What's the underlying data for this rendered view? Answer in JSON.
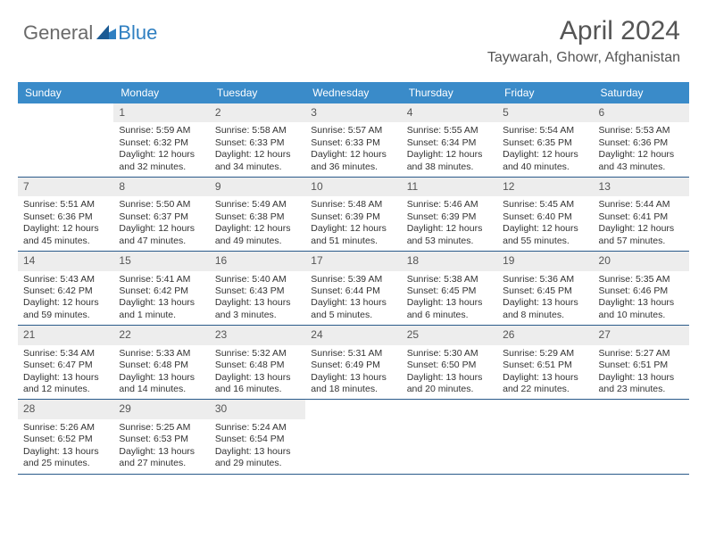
{
  "logo": {
    "general": "General",
    "blue": "Blue"
  },
  "title": "April 2024",
  "location": "Taywarah, Ghowr, Afghanistan",
  "colors": {
    "header_bg": "#3a8bc9",
    "header_text": "#ffffff",
    "daynum_bg": "#ededed",
    "divider": "#2a5a8a",
    "logo_general": "#6a6a6a",
    "logo_blue": "#2f7fc1"
  },
  "weekdays": [
    "Sunday",
    "Monday",
    "Tuesday",
    "Wednesday",
    "Thursday",
    "Friday",
    "Saturday"
  ],
  "weeks": [
    [
      {
        "n": "",
        "sunrise": "",
        "sunset": "",
        "day1": "",
        "day2": ""
      },
      {
        "n": "1",
        "sunrise": "Sunrise: 5:59 AM",
        "sunset": "Sunset: 6:32 PM",
        "day1": "Daylight: 12 hours",
        "day2": "and 32 minutes."
      },
      {
        "n": "2",
        "sunrise": "Sunrise: 5:58 AM",
        "sunset": "Sunset: 6:33 PM",
        "day1": "Daylight: 12 hours",
        "day2": "and 34 minutes."
      },
      {
        "n": "3",
        "sunrise": "Sunrise: 5:57 AM",
        "sunset": "Sunset: 6:33 PM",
        "day1": "Daylight: 12 hours",
        "day2": "and 36 minutes."
      },
      {
        "n": "4",
        "sunrise": "Sunrise: 5:55 AM",
        "sunset": "Sunset: 6:34 PM",
        "day1": "Daylight: 12 hours",
        "day2": "and 38 minutes."
      },
      {
        "n": "5",
        "sunrise": "Sunrise: 5:54 AM",
        "sunset": "Sunset: 6:35 PM",
        "day1": "Daylight: 12 hours",
        "day2": "and 40 minutes."
      },
      {
        "n": "6",
        "sunrise": "Sunrise: 5:53 AM",
        "sunset": "Sunset: 6:36 PM",
        "day1": "Daylight: 12 hours",
        "day2": "and 43 minutes."
      }
    ],
    [
      {
        "n": "7",
        "sunrise": "Sunrise: 5:51 AM",
        "sunset": "Sunset: 6:36 PM",
        "day1": "Daylight: 12 hours",
        "day2": "and 45 minutes."
      },
      {
        "n": "8",
        "sunrise": "Sunrise: 5:50 AM",
        "sunset": "Sunset: 6:37 PM",
        "day1": "Daylight: 12 hours",
        "day2": "and 47 minutes."
      },
      {
        "n": "9",
        "sunrise": "Sunrise: 5:49 AM",
        "sunset": "Sunset: 6:38 PM",
        "day1": "Daylight: 12 hours",
        "day2": "and 49 minutes."
      },
      {
        "n": "10",
        "sunrise": "Sunrise: 5:48 AM",
        "sunset": "Sunset: 6:39 PM",
        "day1": "Daylight: 12 hours",
        "day2": "and 51 minutes."
      },
      {
        "n": "11",
        "sunrise": "Sunrise: 5:46 AM",
        "sunset": "Sunset: 6:39 PM",
        "day1": "Daylight: 12 hours",
        "day2": "and 53 minutes."
      },
      {
        "n": "12",
        "sunrise": "Sunrise: 5:45 AM",
        "sunset": "Sunset: 6:40 PM",
        "day1": "Daylight: 12 hours",
        "day2": "and 55 minutes."
      },
      {
        "n": "13",
        "sunrise": "Sunrise: 5:44 AM",
        "sunset": "Sunset: 6:41 PM",
        "day1": "Daylight: 12 hours",
        "day2": "and 57 minutes."
      }
    ],
    [
      {
        "n": "14",
        "sunrise": "Sunrise: 5:43 AM",
        "sunset": "Sunset: 6:42 PM",
        "day1": "Daylight: 12 hours",
        "day2": "and 59 minutes."
      },
      {
        "n": "15",
        "sunrise": "Sunrise: 5:41 AM",
        "sunset": "Sunset: 6:42 PM",
        "day1": "Daylight: 13 hours",
        "day2": "and 1 minute."
      },
      {
        "n": "16",
        "sunrise": "Sunrise: 5:40 AM",
        "sunset": "Sunset: 6:43 PM",
        "day1": "Daylight: 13 hours",
        "day2": "and 3 minutes."
      },
      {
        "n": "17",
        "sunrise": "Sunrise: 5:39 AM",
        "sunset": "Sunset: 6:44 PM",
        "day1": "Daylight: 13 hours",
        "day2": "and 5 minutes."
      },
      {
        "n": "18",
        "sunrise": "Sunrise: 5:38 AM",
        "sunset": "Sunset: 6:45 PM",
        "day1": "Daylight: 13 hours",
        "day2": "and 6 minutes."
      },
      {
        "n": "19",
        "sunrise": "Sunrise: 5:36 AM",
        "sunset": "Sunset: 6:45 PM",
        "day1": "Daylight: 13 hours",
        "day2": "and 8 minutes."
      },
      {
        "n": "20",
        "sunrise": "Sunrise: 5:35 AM",
        "sunset": "Sunset: 6:46 PM",
        "day1": "Daylight: 13 hours",
        "day2": "and 10 minutes."
      }
    ],
    [
      {
        "n": "21",
        "sunrise": "Sunrise: 5:34 AM",
        "sunset": "Sunset: 6:47 PM",
        "day1": "Daylight: 13 hours",
        "day2": "and 12 minutes."
      },
      {
        "n": "22",
        "sunrise": "Sunrise: 5:33 AM",
        "sunset": "Sunset: 6:48 PM",
        "day1": "Daylight: 13 hours",
        "day2": "and 14 minutes."
      },
      {
        "n": "23",
        "sunrise": "Sunrise: 5:32 AM",
        "sunset": "Sunset: 6:48 PM",
        "day1": "Daylight: 13 hours",
        "day2": "and 16 minutes."
      },
      {
        "n": "24",
        "sunrise": "Sunrise: 5:31 AM",
        "sunset": "Sunset: 6:49 PM",
        "day1": "Daylight: 13 hours",
        "day2": "and 18 minutes."
      },
      {
        "n": "25",
        "sunrise": "Sunrise: 5:30 AM",
        "sunset": "Sunset: 6:50 PM",
        "day1": "Daylight: 13 hours",
        "day2": "and 20 minutes."
      },
      {
        "n": "26",
        "sunrise": "Sunrise: 5:29 AM",
        "sunset": "Sunset: 6:51 PM",
        "day1": "Daylight: 13 hours",
        "day2": "and 22 minutes."
      },
      {
        "n": "27",
        "sunrise": "Sunrise: 5:27 AM",
        "sunset": "Sunset: 6:51 PM",
        "day1": "Daylight: 13 hours",
        "day2": "and 23 minutes."
      }
    ],
    [
      {
        "n": "28",
        "sunrise": "Sunrise: 5:26 AM",
        "sunset": "Sunset: 6:52 PM",
        "day1": "Daylight: 13 hours",
        "day2": "and 25 minutes."
      },
      {
        "n": "29",
        "sunrise": "Sunrise: 5:25 AM",
        "sunset": "Sunset: 6:53 PM",
        "day1": "Daylight: 13 hours",
        "day2": "and 27 minutes."
      },
      {
        "n": "30",
        "sunrise": "Sunrise: 5:24 AM",
        "sunset": "Sunset: 6:54 PM",
        "day1": "Daylight: 13 hours",
        "day2": "and 29 minutes."
      },
      {
        "n": "",
        "sunrise": "",
        "sunset": "",
        "day1": "",
        "day2": ""
      },
      {
        "n": "",
        "sunrise": "",
        "sunset": "",
        "day1": "",
        "day2": ""
      },
      {
        "n": "",
        "sunrise": "",
        "sunset": "",
        "day1": "",
        "day2": ""
      },
      {
        "n": "",
        "sunrise": "",
        "sunset": "",
        "day1": "",
        "day2": ""
      }
    ]
  ]
}
